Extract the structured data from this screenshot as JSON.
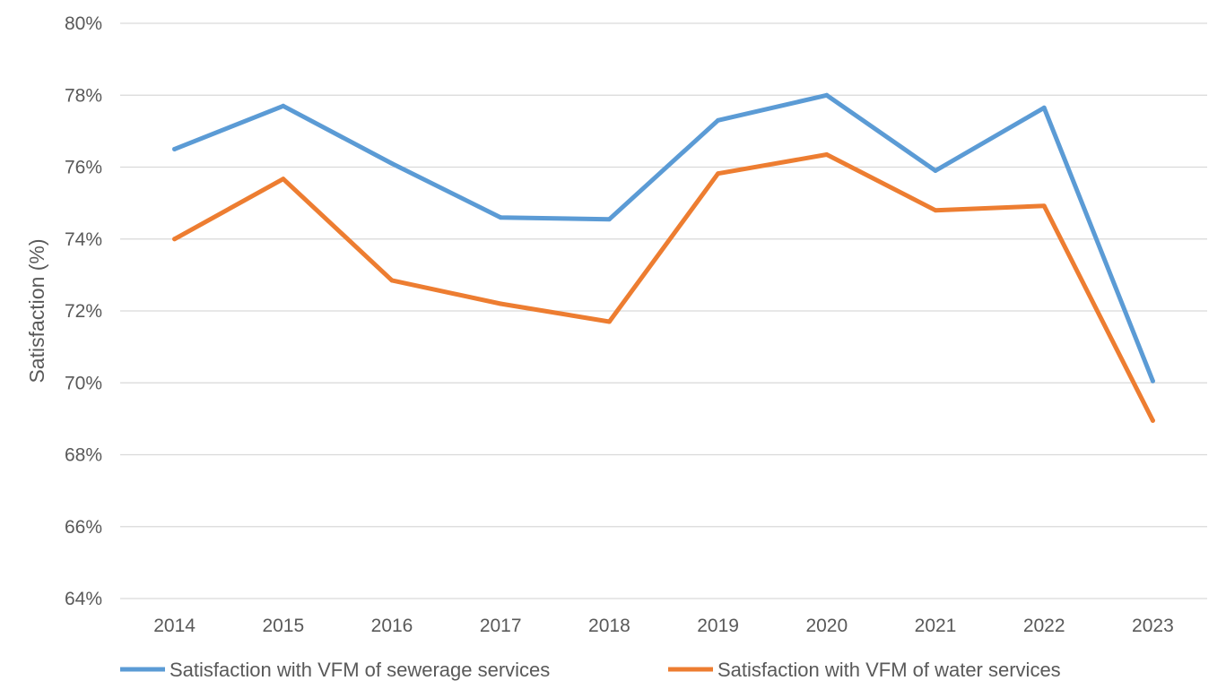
{
  "chart_data": {
    "type": "line",
    "title": "",
    "xlabel": "",
    "ylabel": "Satisfaction (%)",
    "categories": [
      "2014",
      "2015",
      "2016",
      "2017",
      "2018",
      "2019",
      "2020",
      "2021",
      "2022",
      "2023"
    ],
    "ylim": [
      64,
      80
    ],
    "yticks": [
      64,
      66,
      68,
      70,
      72,
      74,
      76,
      78,
      80
    ],
    "ytick_labels": [
      "64%",
      "66%",
      "68%",
      "70%",
      "72%",
      "74%",
      "76%",
      "78%",
      "80%"
    ],
    "grid": "horizontal",
    "legend_position": "bottom",
    "series": [
      {
        "name": "Satisfaction with VFM of sewerage services",
        "color": "#5B9BD5",
        "values": [
          76.5,
          77.7,
          76.1,
          74.6,
          74.55,
          77.3,
          78.0,
          75.9,
          77.65,
          70.05
        ]
      },
      {
        "name": "Satisfaction with VFM of water services",
        "color": "#ED7D31",
        "values": [
          74.0,
          75.67,
          72.85,
          72.2,
          71.7,
          75.82,
          76.35,
          74.8,
          74.92,
          68.95
        ]
      }
    ]
  }
}
